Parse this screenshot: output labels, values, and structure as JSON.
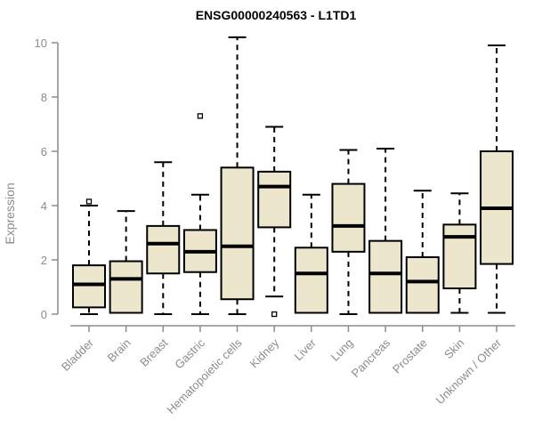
{
  "chart_data": {
    "type": "boxplot",
    "title": "ENSG00000240563 - L1TD1",
    "xlabel": "",
    "ylabel": "Expression",
    "ylim": [
      0,
      10
    ],
    "yticks": [
      0,
      2,
      4,
      6,
      8,
      10
    ],
    "grid": false,
    "legend": "none",
    "categories": [
      "Bladder",
      "Brain",
      "Breast",
      "Gastric",
      "Hematopoietic cells",
      "Kidney",
      "Liver",
      "Lung",
      "Pancreas",
      "Prostate",
      "Skin",
      "Unknown / Other"
    ],
    "series": [
      {
        "name": "Bladder",
        "whisker_low": 0,
        "q1": 0.25,
        "median": 1.1,
        "q3": 1.8,
        "whisker_high": 4.0,
        "outliers": [
          4.15
        ]
      },
      {
        "name": "Brain",
        "whisker_low": 0.05,
        "q1": 0.05,
        "median": 1.3,
        "q3": 1.95,
        "whisker_high": 3.8,
        "outliers": []
      },
      {
        "name": "Breast",
        "whisker_low": 0,
        "q1": 1.5,
        "median": 2.6,
        "q3": 3.25,
        "whisker_high": 5.6,
        "outliers": []
      },
      {
        "name": "Gastric",
        "whisker_low": 0,
        "q1": 1.55,
        "median": 2.3,
        "q3": 3.1,
        "whisker_high": 4.4,
        "outliers": [
          7.3
        ]
      },
      {
        "name": "Hematopoietic cells",
        "whisker_low": 0,
        "q1": 0.55,
        "median": 2.5,
        "q3": 5.4,
        "whisker_high": 10.2,
        "outliers": []
      },
      {
        "name": "Kidney",
        "whisker_low": 0.65,
        "q1": 3.2,
        "median": 4.7,
        "q3": 5.25,
        "whisker_high": 6.9,
        "outliers": [
          0
        ]
      },
      {
        "name": "Liver",
        "whisker_low": 0.05,
        "q1": 0.05,
        "median": 1.5,
        "q3": 2.45,
        "whisker_high": 4.4,
        "outliers": []
      },
      {
        "name": "Lung",
        "whisker_low": 0,
        "q1": 2.3,
        "median": 3.25,
        "q3": 4.8,
        "whisker_high": 6.05,
        "outliers": []
      },
      {
        "name": "Pancreas",
        "whisker_low": 0.05,
        "q1": 0.05,
        "median": 1.5,
        "q3": 2.7,
        "whisker_high": 6.1,
        "outliers": []
      },
      {
        "name": "Prostate",
        "whisker_low": 0.05,
        "q1": 0.05,
        "median": 1.2,
        "q3": 2.1,
        "whisker_high": 4.55,
        "outliers": []
      },
      {
        "name": "Skin",
        "whisker_low": 0.05,
        "q1": 0.95,
        "median": 2.85,
        "q3": 3.3,
        "whisker_high": 4.45,
        "outliers": []
      },
      {
        "name": "Unknown / Other",
        "whisker_low": 0.05,
        "q1": 1.85,
        "median": 3.9,
        "q3": 6.0,
        "whisker_high": 9.9,
        "outliers": []
      }
    ],
    "colors": {
      "box_fill": "#ece6cd",
      "box_border": "#000000",
      "median": "#000000",
      "whisker": "#000000",
      "axis": "#8c8c8c",
      "title": "#000000"
    }
  }
}
